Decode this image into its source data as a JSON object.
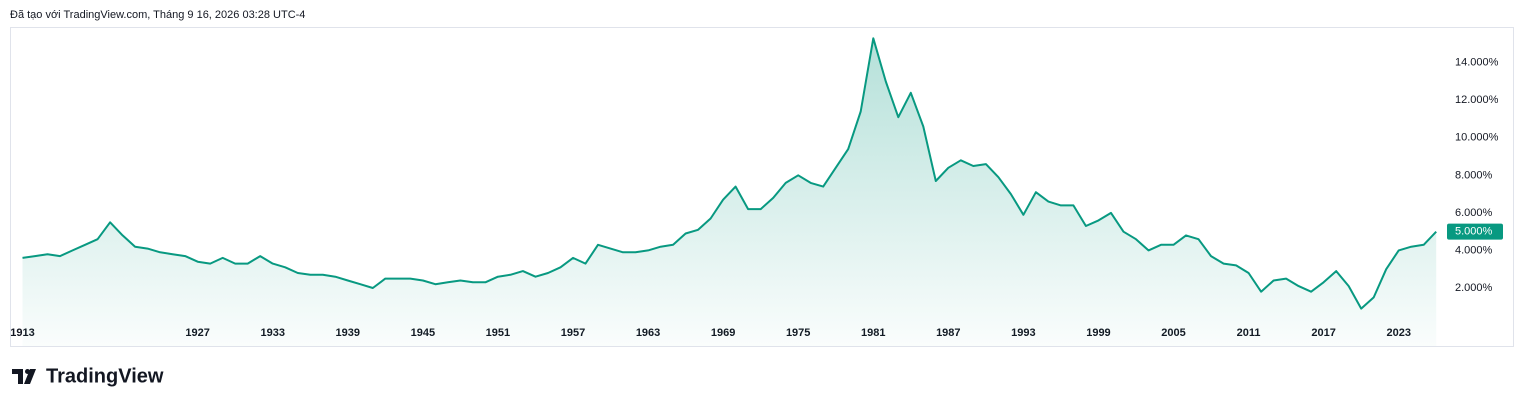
{
  "header": {
    "text": "Đã tạo với TradingView.com, Tháng 9 16, 2026 03:28 UTC-4"
  },
  "footer": {
    "logo_text": "TradingView"
  },
  "chart_data": {
    "type": "area",
    "color": "#089981",
    "x": [
      1913,
      1914,
      1915,
      1916,
      1917,
      1918,
      1919,
      1920,
      1921,
      1922,
      1923,
      1924,
      1925,
      1926,
      1927,
      1928,
      1929,
      1930,
      1931,
      1932,
      1933,
      1934,
      1935,
      1936,
      1937,
      1938,
      1939,
      1940,
      1941,
      1942,
      1943,
      1944,
      1945,
      1946,
      1947,
      1948,
      1949,
      1950,
      1951,
      1952,
      1953,
      1954,
      1955,
      1956,
      1957,
      1958,
      1959,
      1960,
      1961,
      1962,
      1963,
      1964,
      1965,
      1966,
      1967,
      1968,
      1969,
      1970,
      1971,
      1972,
      1973,
      1974,
      1975,
      1976,
      1977,
      1978,
      1979,
      1980,
      1981,
      1982,
      1983,
      1984,
      1985,
      1986,
      1987,
      1988,
      1989,
      1990,
      1991,
      1992,
      1993,
      1994,
      1995,
      1996,
      1997,
      1998,
      1999,
      2000,
      2001,
      2002,
      2003,
      2004,
      2005,
      2006,
      2007,
      2008,
      2009,
      2010,
      2011,
      2012,
      2013,
      2014,
      2015,
      2016,
      2017,
      2018,
      2019,
      2020,
      2021,
      2022,
      2023,
      2024,
      2025,
      2026
    ],
    "values": [
      3.6,
      3.7,
      3.8,
      3.7,
      4.0,
      4.3,
      4.6,
      5.5,
      4.8,
      4.2,
      4.1,
      3.9,
      3.8,
      3.7,
      3.4,
      3.3,
      3.6,
      3.3,
      3.3,
      3.7,
      3.3,
      3.1,
      2.8,
      2.7,
      2.7,
      2.6,
      2.4,
      2.2,
      2.0,
      2.5,
      2.5,
      2.5,
      2.4,
      2.2,
      2.3,
      2.4,
      2.3,
      2.3,
      2.6,
      2.7,
      2.9,
      2.6,
      2.8,
      3.1,
      3.6,
      3.3,
      4.3,
      4.1,
      3.9,
      3.9,
      4.0,
      4.2,
      4.3,
      4.9,
      5.1,
      5.7,
      6.7,
      7.4,
      6.2,
      6.2,
      6.8,
      7.6,
      8.0,
      7.6,
      7.4,
      8.4,
      9.4,
      11.4,
      15.3,
      13.0,
      11.1,
      12.4,
      10.6,
      7.7,
      8.4,
      8.8,
      8.5,
      8.6,
      7.9,
      7.0,
      5.9,
      7.1,
      6.6,
      6.4,
      6.4,
      5.3,
      5.6,
      6.0,
      5.0,
      4.6,
      4.0,
      4.3,
      4.3,
      4.8,
      4.6,
      3.7,
      3.3,
      3.2,
      2.8,
      1.8,
      2.4,
      2.5,
      2.1,
      1.8,
      2.3,
      2.9,
      2.1,
      0.9,
      1.5,
      3.0,
      4.0,
      4.2,
      4.3,
      5.0
    ],
    "xlim": [
      1912,
      2026.3
    ],
    "xticks": [
      1913,
      1927,
      1933,
      1939,
      1945,
      1951,
      1957,
      1963,
      1969,
      1975,
      1981,
      1987,
      1993,
      1999,
      2005,
      2011,
      2017,
      2023
    ],
    "ylim": [
      0.4,
      15.85
    ],
    "yticks": [
      {
        "value": 2,
        "label": "2.000%"
      },
      {
        "value": 4,
        "label": "4.000%"
      },
      {
        "value": 6,
        "label": "6.000%"
      },
      {
        "value": 8,
        "label": "8.000%"
      },
      {
        "value": 10,
        "label": "10.000%"
      },
      {
        "value": 12,
        "label": "12.000%"
      },
      {
        "value": 14,
        "label": "14.000%"
      }
    ],
    "last_price": {
      "value": 5.0,
      "label": "5.000%"
    }
  }
}
